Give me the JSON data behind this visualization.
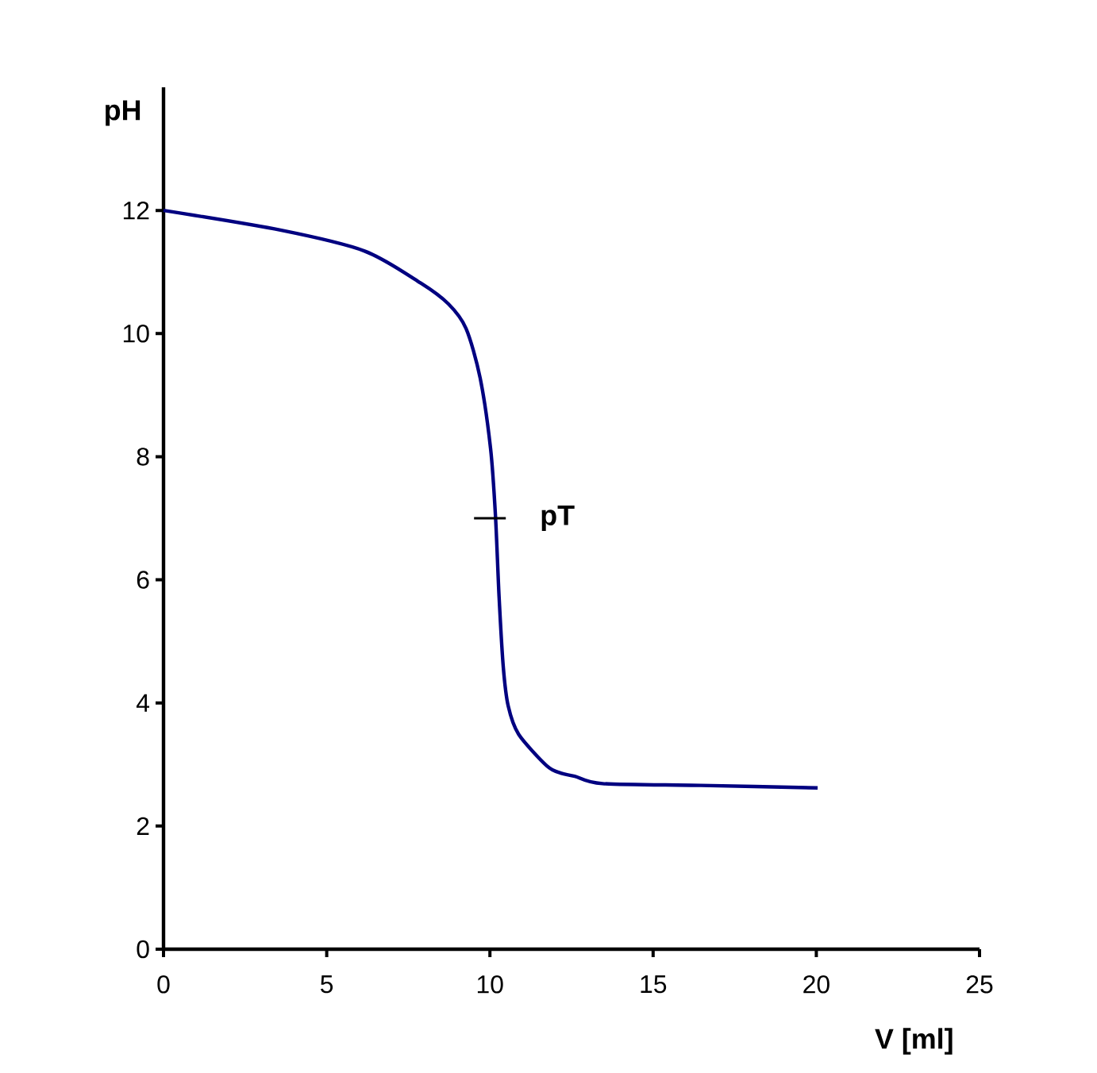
{
  "chart_data": {
    "type": "line",
    "xlabel": "V [ml]",
    "ylabel": "pH",
    "xlim": [
      0,
      25
    ],
    "ylim": [
      0,
      14
    ],
    "xticks": [
      0,
      5,
      10,
      15,
      20,
      25
    ],
    "yticks": [
      0,
      2,
      4,
      6,
      8,
      10,
      12
    ],
    "grid": false,
    "marker": "none",
    "line_style": "solid",
    "series": [
      {
        "color": "#000080",
        "x": [
          0,
          3.58,
          6.16,
          7.88,
          8.73,
          9.27,
          9.7,
          10.02,
          10.17,
          10.28,
          10.41,
          10.56,
          10.88,
          11.74,
          12.17,
          12.6,
          13.45,
          16.46,
          20.04
        ],
        "values": [
          12,
          11.68,
          11.34,
          10.82,
          10.48,
          10.08,
          9.28,
          8.13,
          7.04,
          5.73,
          4.58,
          3.95,
          3.49,
          2.98,
          2.86,
          2.81,
          2.69,
          2.66,
          2.62
        ]
      }
    ],
    "annotations": [
      {
        "text": "pT",
        "x": 10,
        "y": 7
      }
    ]
  }
}
